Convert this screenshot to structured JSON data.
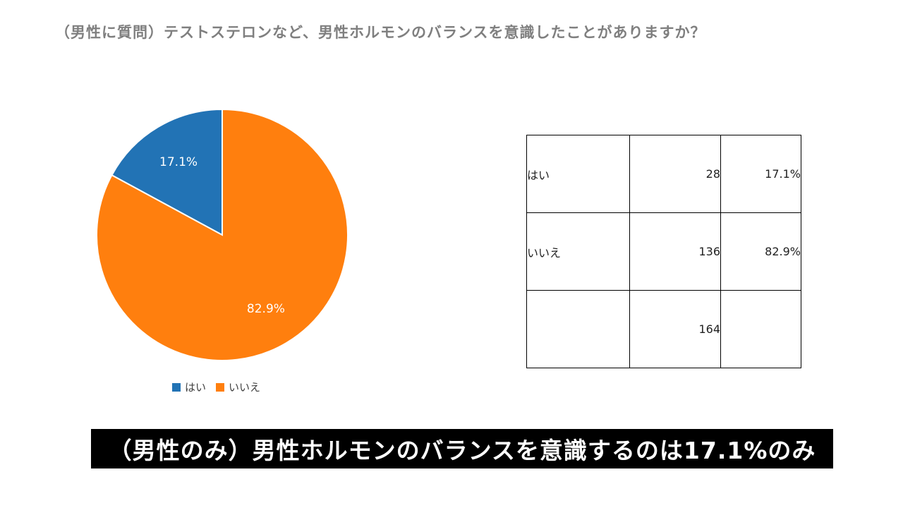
{
  "question": "（男性に質問）テストステロンなど、男性ホルモンのバランスを意識したことがありますか？",
  "chart_data": {
    "type": "pie",
    "categories": [
      "はい",
      "いいえ"
    ],
    "values": [
      17.1,
      82.9
    ],
    "labels": [
      "17.1%",
      "82.9%"
    ],
    "colors": [
      "#2273b5",
      "#ff7f0e"
    ],
    "legend_position": "bottom"
  },
  "legend": [
    {
      "label": "はい",
      "color": "#2273b5"
    },
    {
      "label": "いいえ",
      "color": "#ff7f0e"
    }
  ],
  "table": {
    "rows": [
      {
        "label": "はい",
        "count": "28",
        "pct": "17.1%"
      },
      {
        "label": "いいえ",
        "count": "136",
        "pct": "82.9%"
      },
      {
        "label": "",
        "count": "164",
        "pct": ""
      }
    ]
  },
  "conclusion": "（男性のみ）男性ホルモンのバランスを意識するのは17.1%のみ"
}
